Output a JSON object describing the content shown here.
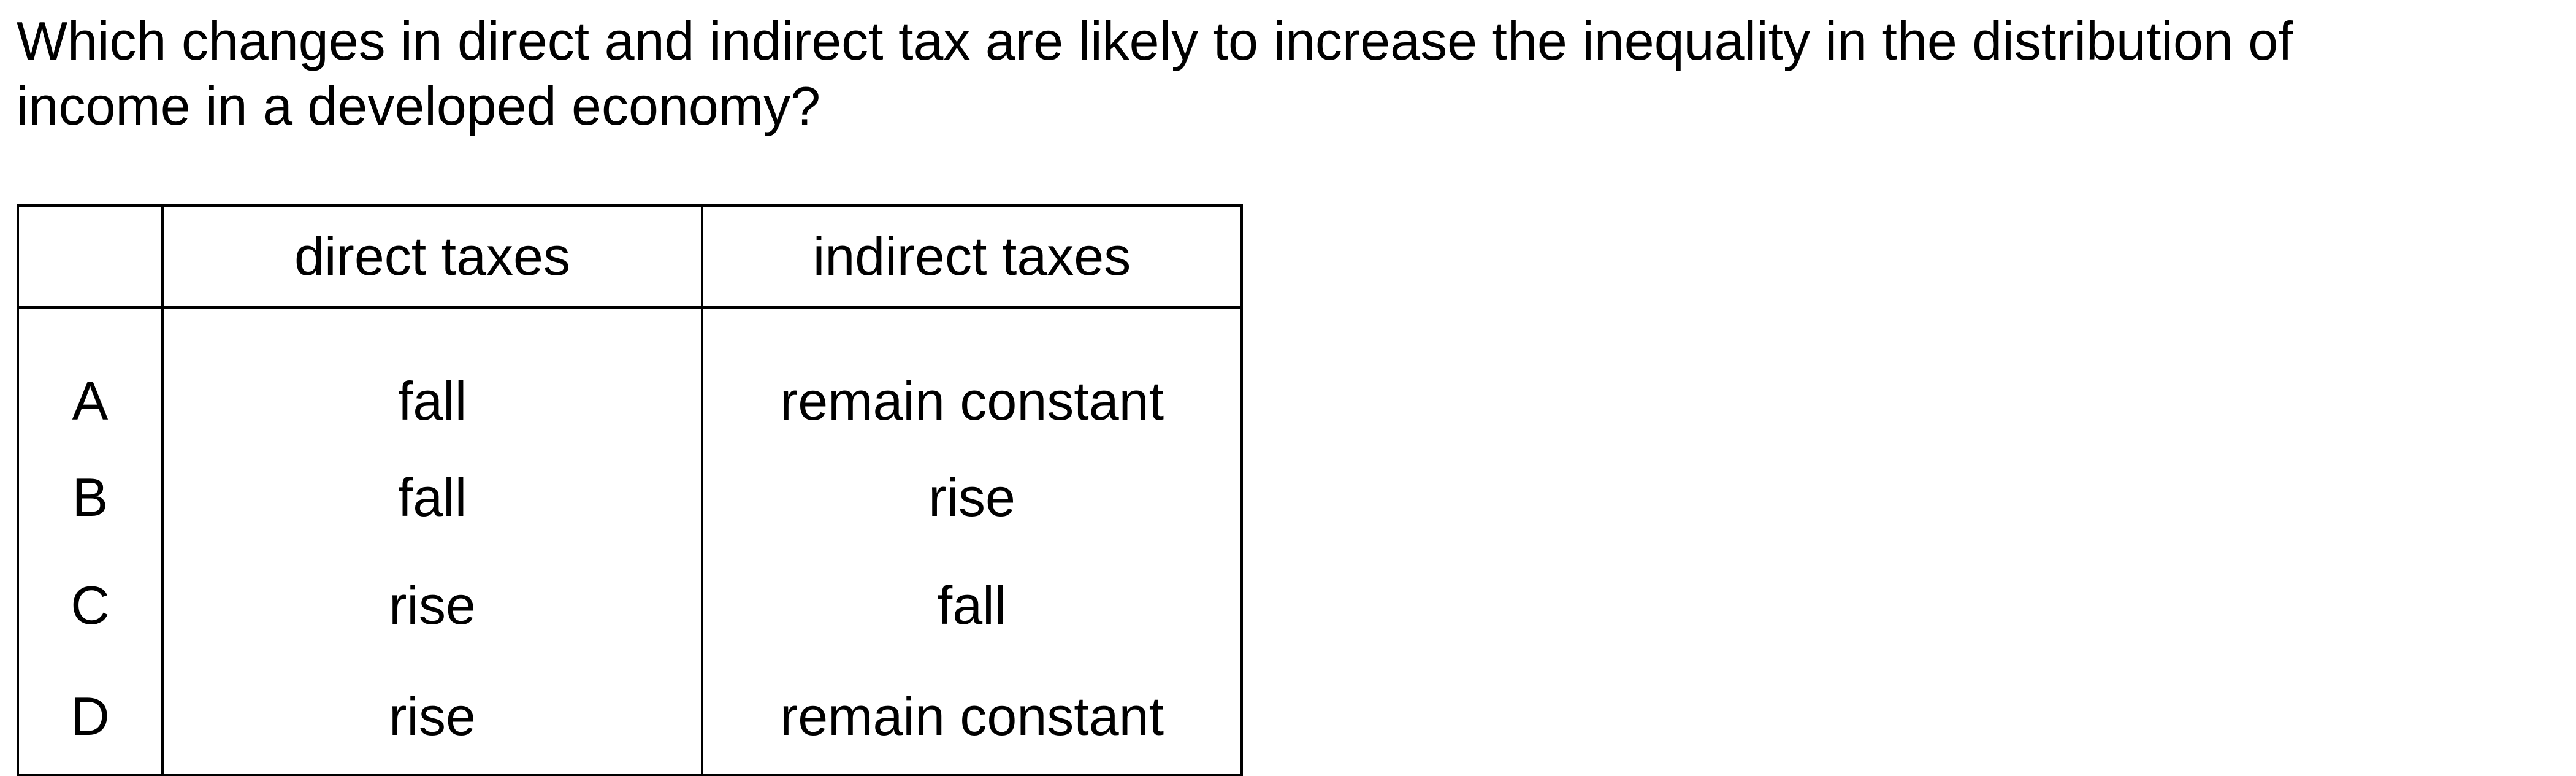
{
  "question": {
    "line1": "Which changes in direct and indirect tax are likely to increase the inequality in the distribution of",
    "line2": "income in a developed economy?"
  },
  "table": {
    "headers": {
      "option": "",
      "direct": "direct taxes",
      "indirect": "indirect taxes"
    },
    "rows": [
      {
        "option": "A",
        "direct": "fall",
        "indirect": "remain constant"
      },
      {
        "option": "B",
        "direct": "fall",
        "indirect": "rise"
      },
      {
        "option": "C",
        "direct": "rise",
        "indirect": "fall"
      },
      {
        "option": "D",
        "direct": "rise",
        "indirect": "remain constant"
      }
    ]
  }
}
